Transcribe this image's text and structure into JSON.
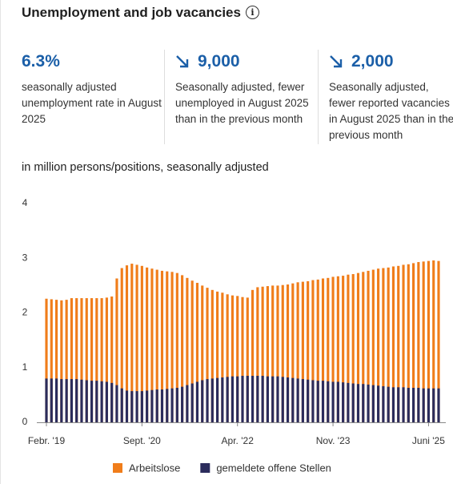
{
  "header": {
    "title": "Unemployment and job vacancies"
  },
  "kpis": [
    {
      "value": "6.3%",
      "text": "seasonally adjusted unemployment rate in August 2025"
    },
    {
      "value": "9,000",
      "text": "Seasonally adjusted, fewer unemployed in August 2025 than in the previous month"
    },
    {
      "value": "2,000",
      "text": "Seasonally adjusted, fewer reported vacancies in August 2025 than in the previous month"
    }
  ],
  "chart_data": {
    "type": "bar",
    "barmode": "overlay",
    "subtitle": "in million persons/positions, seasonally adjusted",
    "categories": [
      "Febr. '19",
      null,
      null,
      null,
      null,
      null,
      null,
      null,
      null,
      null,
      null,
      null,
      null,
      null,
      null,
      null,
      null,
      null,
      null,
      "Sept. '20",
      null,
      null,
      null,
      null,
      null,
      null,
      null,
      null,
      null,
      null,
      null,
      null,
      null,
      null,
      null,
      null,
      null,
      null,
      "Apr. '22",
      null,
      null,
      null,
      null,
      null,
      null,
      null,
      null,
      null,
      null,
      null,
      null,
      null,
      null,
      null,
      null,
      null,
      null,
      "Nov. '23",
      null,
      null,
      null,
      null,
      null,
      null,
      null,
      null,
      null,
      null,
      null,
      null,
      null,
      null,
      null,
      null,
      null,
      null,
      "Juni '25",
      null,
      null
    ],
    "series": [
      {
        "name": "Arbeitslose",
        "color": "#f07d1a",
        "values": [
          2.26,
          2.25,
          2.24,
          2.23,
          2.24,
          2.27,
          2.27,
          2.27,
          2.27,
          2.27,
          2.27,
          2.27,
          2.28,
          2.3,
          2.63,
          2.82,
          2.87,
          2.9,
          2.88,
          2.86,
          2.83,
          2.81,
          2.79,
          2.77,
          2.76,
          2.75,
          2.73,
          2.69,
          2.64,
          2.59,
          2.55,
          2.5,
          2.46,
          2.42,
          2.39,
          2.37,
          2.34,
          2.32,
          2.31,
          2.29,
          2.28,
          2.42,
          2.47,
          2.48,
          2.49,
          2.5,
          2.5,
          2.51,
          2.52,
          2.54,
          2.56,
          2.57,
          2.58,
          2.6,
          2.61,
          2.63,
          2.64,
          2.66,
          2.67,
          2.68,
          2.7,
          2.71,
          2.73,
          2.75,
          2.77,
          2.79,
          2.81,
          2.82,
          2.83,
          2.85,
          2.86,
          2.88,
          2.89,
          2.91,
          2.93,
          2.94,
          2.95,
          2.96,
          2.95
        ]
      },
      {
        "name": "gemeldete offene Stellen",
        "color": "#2b2c5c",
        "values": [
          0.8,
          0.8,
          0.8,
          0.79,
          0.79,
          0.79,
          0.79,
          0.78,
          0.77,
          0.76,
          0.76,
          0.75,
          0.74,
          0.72,
          0.68,
          0.62,
          0.58,
          0.57,
          0.57,
          0.57,
          0.58,
          0.59,
          0.6,
          0.6,
          0.61,
          0.62,
          0.63,
          0.65,
          0.68,
          0.71,
          0.74,
          0.77,
          0.79,
          0.8,
          0.81,
          0.82,
          0.83,
          0.84,
          0.84,
          0.85,
          0.85,
          0.85,
          0.85,
          0.85,
          0.84,
          0.84,
          0.84,
          0.83,
          0.82,
          0.81,
          0.8,
          0.79,
          0.78,
          0.77,
          0.76,
          0.76,
          0.75,
          0.74,
          0.74,
          0.73,
          0.72,
          0.71,
          0.7,
          0.7,
          0.69,
          0.68,
          0.67,
          0.66,
          0.65,
          0.64,
          0.64,
          0.64,
          0.63,
          0.63,
          0.63,
          0.62,
          0.62,
          0.62,
          0.62
        ]
      }
    ],
    "ylim": [
      0,
      4
    ],
    "yticks": [
      0,
      1,
      2,
      3,
      4
    ]
  }
}
